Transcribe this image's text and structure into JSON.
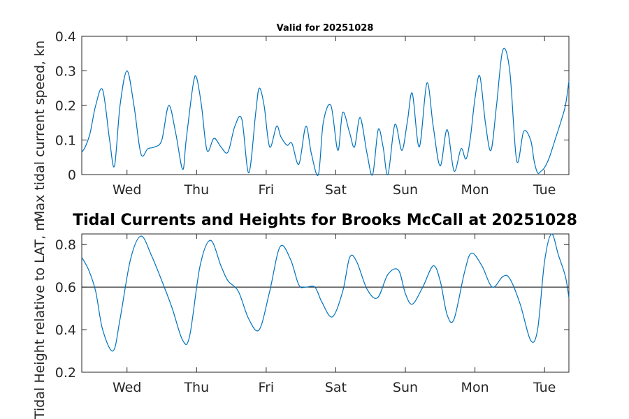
{
  "chart_data": [
    {
      "type": "line",
      "title": "Valid for 20251028",
      "ylabel": "Max tidal current speed, kn",
      "ylim": [
        0,
        0.4
      ],
      "yticks": [
        0,
        0.1,
        0.2,
        0.3,
        0.4
      ],
      "xlim": [
        0,
        7
      ],
      "xticks": [
        0.65,
        1.65,
        2.65,
        3.65,
        4.65,
        5.65,
        6.65
      ],
      "xticklabels": [
        "Wed",
        "Thu",
        "Fri",
        "Sat",
        "Sun",
        "Mon",
        "Tue"
      ],
      "line_color": "#0072BD",
      "series": [
        {
          "x": [
            0,
            0.05,
            0.12,
            0.2,
            0.3,
            0.4,
            0.47,
            0.55,
            0.65,
            0.75,
            0.85,
            0.95,
            1.05,
            1.15,
            1.25,
            1.35,
            1.45,
            1.5,
            1.6,
            1.65,
            1.72,
            1.8,
            1.9,
            2.0,
            2.1,
            2.2,
            2.3,
            2.4,
            2.5,
            2.55,
            2.62,
            2.7,
            2.8,
            2.86,
            2.95,
            3.02,
            3.12,
            3.22,
            3.3,
            3.4,
            3.47,
            3.58,
            3.68,
            3.75,
            3.85,
            3.92,
            4.0,
            4.1,
            4.18,
            4.26,
            4.33,
            4.4,
            4.5,
            4.6,
            4.68,
            4.75,
            4.85,
            4.96,
            5.05,
            5.15,
            5.25,
            5.35,
            5.45,
            5.52,
            5.58,
            5.65,
            5.72,
            5.8,
            5.88,
            5.96,
            6.05,
            6.15,
            6.25,
            6.35,
            6.45,
            6.5,
            6.55,
            6.6,
            6.65,
            6.72,
            6.8,
            6.88,
            6.95,
            7.0
          ],
          "y": [
            0.065,
            0.08,
            0.12,
            0.2,
            0.245,
            0.1,
            0.025,
            0.2,
            0.3,
            0.2,
            0.06,
            0.075,
            0.08,
            0.1,
            0.2,
            0.12,
            0.015,
            0.1,
            0.26,
            0.28,
            0.2,
            0.07,
            0.105,
            0.08,
            0.065,
            0.14,
            0.16,
            0.005,
            0.18,
            0.25,
            0.2,
            0.08,
            0.14,
            0.11,
            0.085,
            0.09,
            0.03,
            0.14,
            0.06,
            0.0,
            0.15,
            0.2,
            0.07,
            0.18,
            0.12,
            0.08,
            0.165,
            0.06,
            0.0,
            0.13,
            0.08,
            0.0,
            0.145,
            0.07,
            0.155,
            0.235,
            0.08,
            0.265,
            0.14,
            0.025,
            0.13,
            0.01,
            0.075,
            0.045,
            0.1,
            0.22,
            0.285,
            0.15,
            0.07,
            0.2,
            0.36,
            0.3,
            0.04,
            0.125,
            0.1,
            0.04,
            0.005,
            0.01,
            0.02,
            0.05,
            0.1,
            0.15,
            0.2,
            0.27
          ]
        }
      ]
    },
    {
      "type": "line",
      "title": "Tidal Currents and Heights for Brooks McCall at 20251028",
      "ylabel": "Tidal Height relative to LAT, m",
      "ylim": [
        0.2,
        0.85
      ],
      "yticks": [
        0.2,
        0.4,
        0.6,
        0.8
      ],
      "xlim": [
        0,
        7
      ],
      "xticks": [
        0.65,
        1.65,
        2.65,
        3.65,
        4.65,
        5.65,
        6.65
      ],
      "xticklabels": [
        "Wed",
        "Thu",
        "Fri",
        "Sat",
        "Sun",
        "Mon",
        "Tue"
      ],
      "reference_line": 0.6,
      "line_color": "#0072BD",
      "series": [
        {
          "x": [
            0,
            0.1,
            0.2,
            0.3,
            0.45,
            0.55,
            0.7,
            0.85,
            1.0,
            1.15,
            1.3,
            1.45,
            1.55,
            1.7,
            1.85,
            2.0,
            2.1,
            2.25,
            2.4,
            2.55,
            2.7,
            2.85,
            3.0,
            3.12,
            3.22,
            3.35,
            3.45,
            3.6,
            3.75,
            3.85,
            3.95,
            4.1,
            4.25,
            4.4,
            4.55,
            4.65,
            4.75,
            4.9,
            5.05,
            5.15,
            5.25,
            5.35,
            5.5,
            5.6,
            5.75,
            5.9,
            6.05,
            6.15,
            6.3,
            6.45,
            6.55,
            6.65,
            6.75,
            6.85,
            6.95,
            7.0
          ],
          "y": [
            0.74,
            0.68,
            0.58,
            0.4,
            0.3,
            0.45,
            0.73,
            0.84,
            0.75,
            0.63,
            0.5,
            0.35,
            0.37,
            0.7,
            0.82,
            0.7,
            0.63,
            0.58,
            0.45,
            0.4,
            0.58,
            0.79,
            0.73,
            0.61,
            0.6,
            0.6,
            0.53,
            0.46,
            0.58,
            0.74,
            0.72,
            0.59,
            0.55,
            0.66,
            0.68,
            0.57,
            0.52,
            0.6,
            0.7,
            0.63,
            0.47,
            0.45,
            0.67,
            0.76,
            0.7,
            0.6,
            0.65,
            0.64,
            0.52,
            0.35,
            0.4,
            0.72,
            0.86,
            0.75,
            0.65,
            0.55
          ]
        }
      ]
    }
  ]
}
